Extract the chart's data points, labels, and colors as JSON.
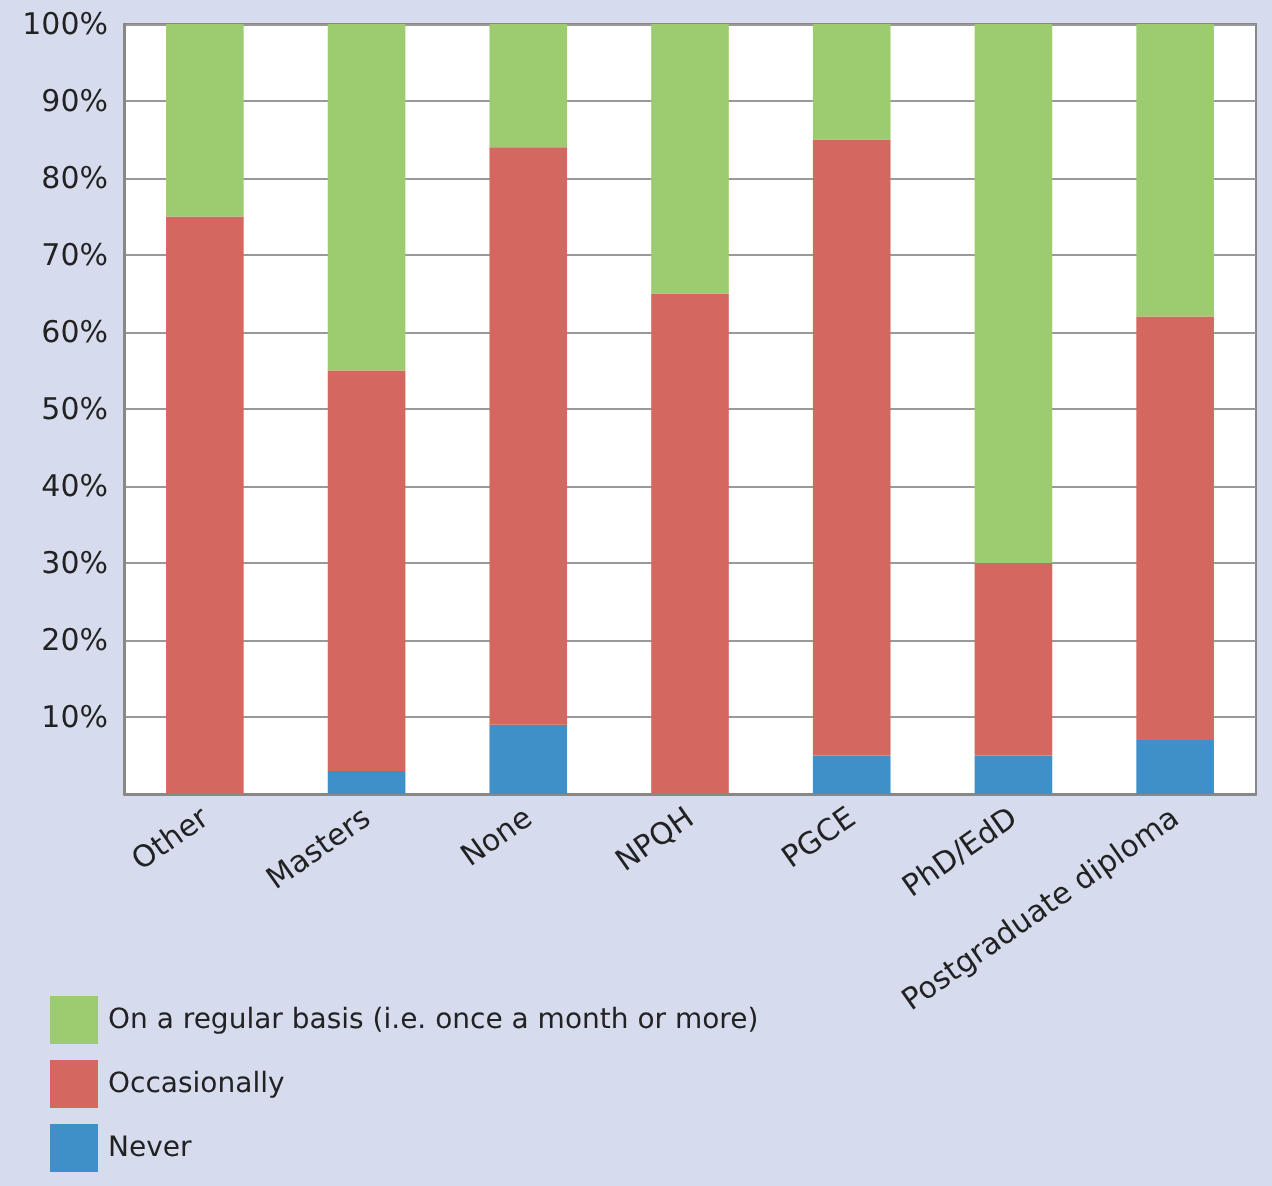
{
  "chart_data": {
    "type": "bar",
    "stacked": true,
    "categories": [
      "Other",
      "Masters",
      "None",
      "NPQH",
      "PGCE",
      "PhD/EdD",
      "Postgraduate diploma"
    ],
    "series": [
      {
        "name": "Never",
        "color": "#3f8fc8",
        "values": [
          0,
          3,
          9,
          0,
          5,
          5,
          7
        ]
      },
      {
        "name": "Occasionally",
        "color": "#d4675f",
        "values": [
          75,
          52,
          75,
          65,
          80,
          25,
          55
        ]
      },
      {
        "name": "On a regular basis (i.e. once a month or more)",
        "color": "#9ccb70",
        "values": [
          25,
          45,
          16,
          35,
          15,
          70,
          38
        ]
      }
    ],
    "ylim": [
      0,
      100
    ],
    "yticks": [
      {
        "value": 0,
        "label": null
      },
      {
        "value": 10,
        "label": "10%"
      },
      {
        "value": 20,
        "label": "20%"
      },
      {
        "value": 30,
        "label": "30%"
      },
      {
        "value": 40,
        "label": "40%"
      },
      {
        "value": 50,
        "label": "50%"
      },
      {
        "value": 60,
        "label": "60%"
      },
      {
        "value": 70,
        "label": "70%"
      },
      {
        "value": 80,
        "label": "80%"
      },
      {
        "value": 90,
        "label": "90%"
      },
      {
        "value": 100,
        "label": "100%"
      }
    ],
    "grid": "y",
    "legend": "bottom left"
  }
}
